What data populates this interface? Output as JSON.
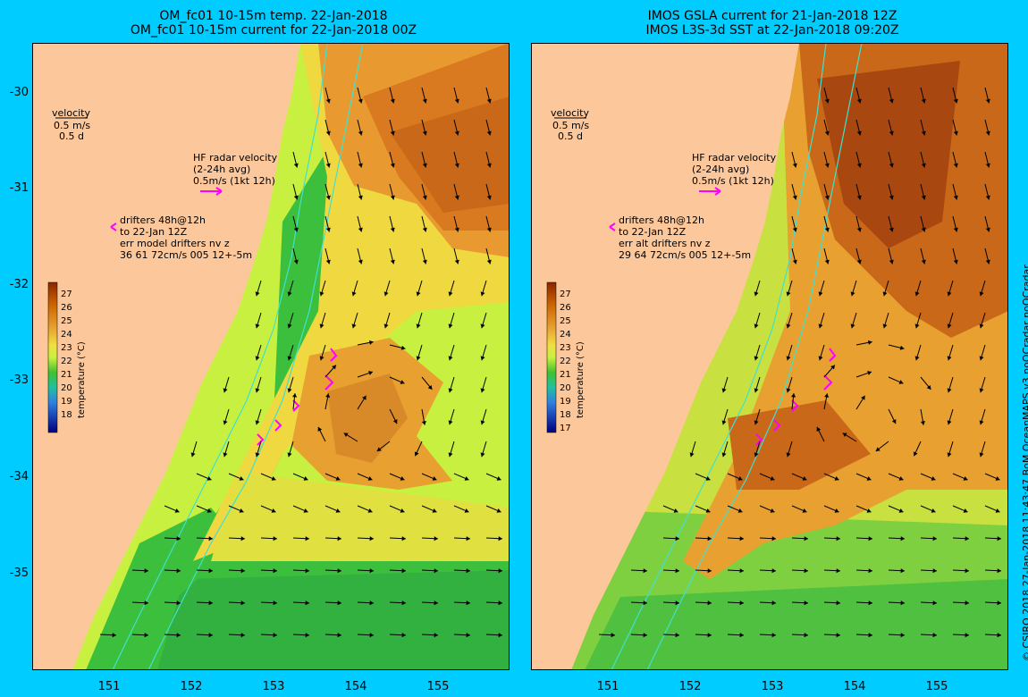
{
  "panels": {
    "left": {
      "title_line1": "OM_fc01 10-15m temp. 22-Jan-2018",
      "title_line2": "OM_fc01 10-15m current for 22-Jan-2018 00Z",
      "velocity_label": "velocity",
      "velocity_scale": "0.5 m/s",
      "velocity_days": "0.5 d",
      "hf_label1": "HF radar velocity",
      "hf_label2": "(2-24h avg)",
      "hf_label3": "0.5m/s (1kt 12h)",
      "drifter_line1": "drifters 48h@12h",
      "drifter_line2": "to 22-Jan 12Z",
      "drifter_line3": "err model drifters nv z",
      "drifter_line4": "36 61 72cm/s 005 12+-5m",
      "colorbar_ticks": [
        "27",
        "26",
        "25",
        "24",
        "23",
        "22",
        "21",
        "20",
        "19",
        "18"
      ],
      "colorbar_label": "temperature (°C)"
    },
    "right": {
      "title_line1": "IMOS GSLA current for 21-Jan-2018 12Z",
      "title_line2": "IMOS L3S-3d SST at 22-Jan-2018 09:20Z",
      "velocity_label": "velocity",
      "velocity_scale": "0.5 m/s",
      "velocity_days": "0.5 d",
      "hf_label1": "HF radar velocity",
      "hf_label2": "(2-24h avg)",
      "hf_label3": "0.5m/s (1kt 12h)",
      "drifter_line1": "drifters 48h@12h",
      "drifter_line2": "to 22-Jan 12Z",
      "drifter_line3": "err alt drifters nv z",
      "drifter_line4": "29 64 72cm/s 005 12+-5m",
      "colorbar_ticks": [
        "27",
        "26",
        "25",
        "24",
        "23",
        "22",
        "21",
        "20",
        "19",
        "18",
        "17"
      ],
      "colorbar_label": "temperature (°C)"
    }
  },
  "axes": {
    "lat_ticks": [
      "-30",
      "-31",
      "-32",
      "-33",
      "-34",
      "-35"
    ],
    "lon_ticks": [
      "151",
      "152",
      "153",
      "154",
      "155"
    ]
  },
  "credit": "© CSIRO 2018   27-Jan-2018 11:43:47 BoM OceanMAPS v3 noQCradar noQCradar",
  "colors": {
    "background": "#00ccff",
    "land": "#fcc89b",
    "isobath": "#40e0d0",
    "drifter": "#ff00ff",
    "arrow": "#000000"
  }
}
